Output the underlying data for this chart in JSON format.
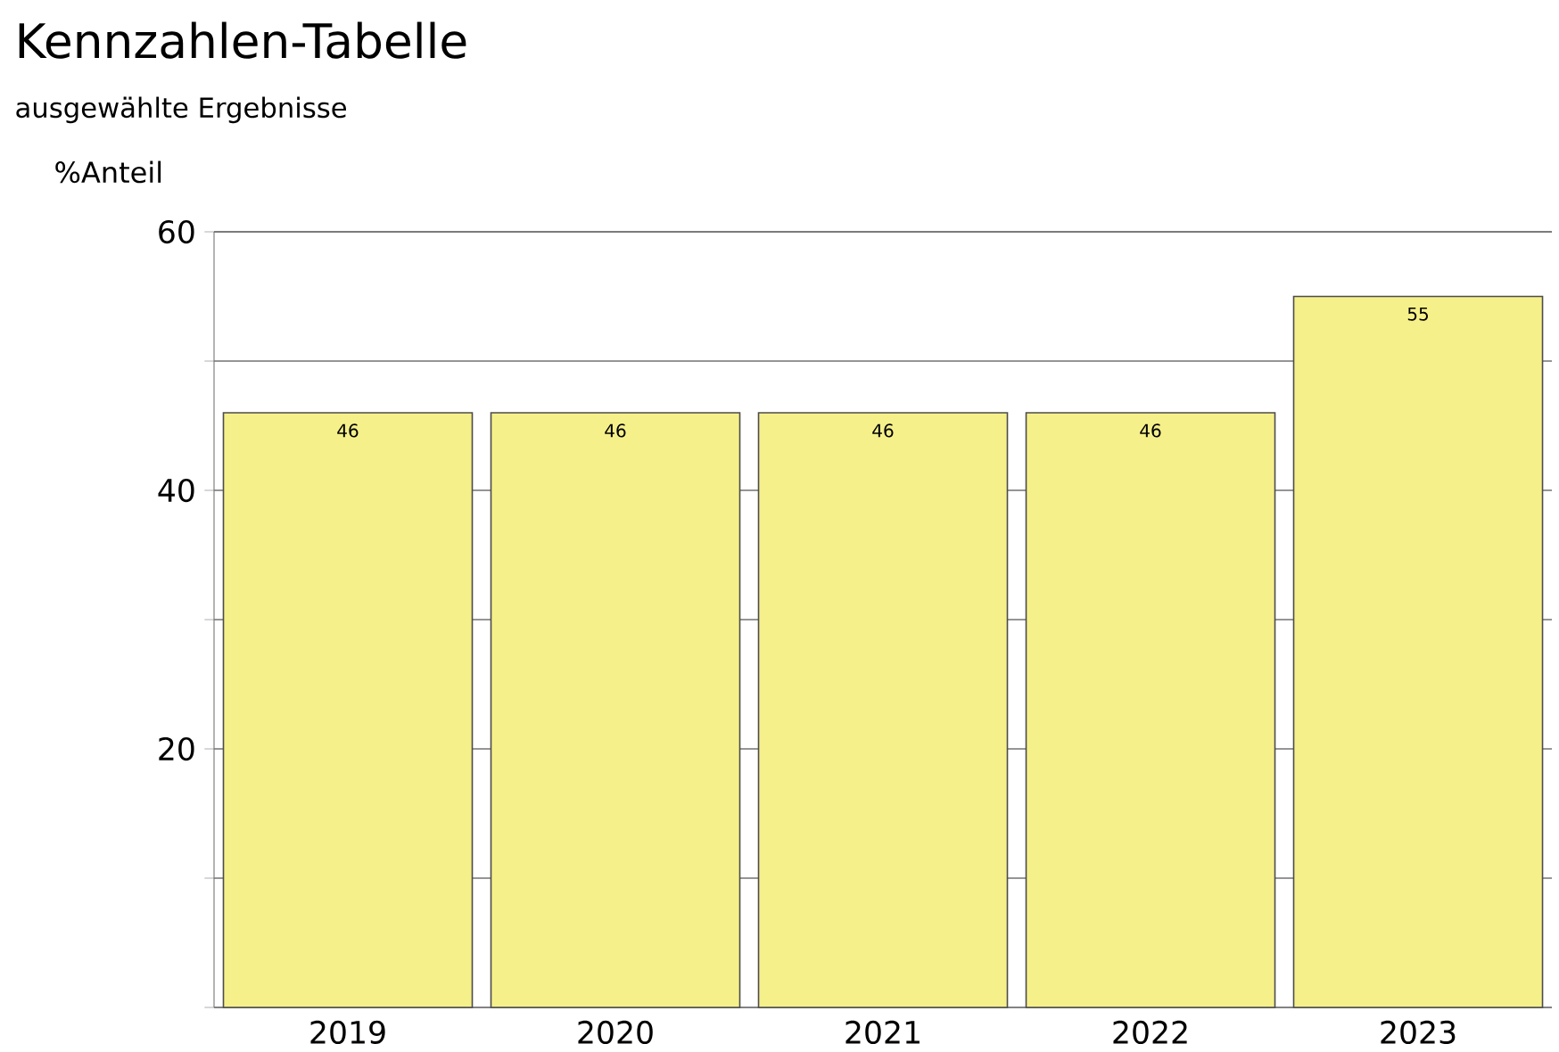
{
  "chart_data": {
    "type": "bar",
    "title": "Kennzahlen-Tabelle",
    "subtitle": "ausgewählte Ergebnisse",
    "ylabel": "%Anteil",
    "categories": [
      "2019",
      "2020",
      "2021",
      "2022",
      "2023"
    ],
    "values": [
      46,
      46,
      46,
      46,
      55
    ],
    "color": "#f6f08a",
    "ylim": [
      0,
      60
    ],
    "yticks": [
      {
        "value": 0,
        "label": null
      },
      {
        "value": 10,
        "label": null
      },
      20,
      {
        "value": 30,
        "label": null
      },
      40,
      {
        "value": 50,
        "label": null
      },
      60
    ],
    "grid": "y",
    "data_labels": true
  }
}
